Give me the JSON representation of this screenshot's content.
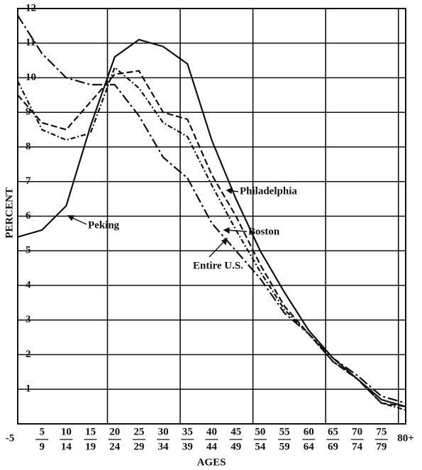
{
  "chart_data": {
    "type": "line",
    "y_label": "PERCENT",
    "x_label": "AGES",
    "categories": [
      [
        "-5"
      ],
      [
        "5",
        "9"
      ],
      [
        "10",
        "14"
      ],
      [
        "15",
        "19"
      ],
      [
        "20",
        "24"
      ],
      [
        "25",
        "29"
      ],
      [
        "30",
        "34"
      ],
      [
        "35",
        "39"
      ],
      [
        "40",
        "44"
      ],
      [
        "45",
        "49"
      ],
      [
        "50",
        "54"
      ],
      [
        "55",
        "59"
      ],
      [
        "60",
        "64"
      ],
      [
        "65",
        "69"
      ],
      [
        "70",
        "74"
      ],
      [
        "75",
        "79"
      ],
      [
        "80+"
      ]
    ],
    "ylim": [
      0,
      12
    ],
    "yticks": [
      1,
      2,
      3,
      4,
      5,
      6,
      7,
      8,
      9,
      10,
      11,
      12
    ],
    "grid": true,
    "series": [
      {
        "name": "Peking",
        "color": "#111111",
        "style": "solid",
        "values": [
          5.4,
          5.6,
          6.3,
          8.6,
          10.6,
          11.1,
          10.9,
          10.4,
          8.2,
          6.5,
          5.0,
          3.8,
          2.7,
          1.9,
          1.3,
          0.7,
          0.5
        ]
      },
      {
        "name": "Philadelphia",
        "color": "#111111",
        "style": "dashed",
        "values": [
          9.5,
          8.7,
          8.5,
          9.3,
          10.1,
          10.2,
          9.0,
          8.8,
          7.2,
          6.0,
          4.6,
          3.4,
          2.6,
          1.8,
          1.3,
          0.6,
          0.5
        ]
      },
      {
        "name": "Boston",
        "color": "#111111",
        "style": "dashdot",
        "values": [
          9.9,
          8.5,
          8.2,
          8.4,
          10.3,
          9.7,
          8.7,
          8.3,
          6.9,
          5.6,
          4.4,
          3.3,
          2.6,
          1.8,
          1.3,
          0.6,
          0.4
        ]
      },
      {
        "name": "Entire U.S.",
        "color": "#111111",
        "style": "longdashdot",
        "values": [
          11.8,
          10.7,
          10.0,
          9.8,
          9.8,
          8.9,
          7.7,
          7.1,
          5.8,
          5.0,
          4.2,
          3.2,
          2.6,
          1.9,
          1.4,
          0.8,
          0.6
        ]
      }
    ]
  }
}
